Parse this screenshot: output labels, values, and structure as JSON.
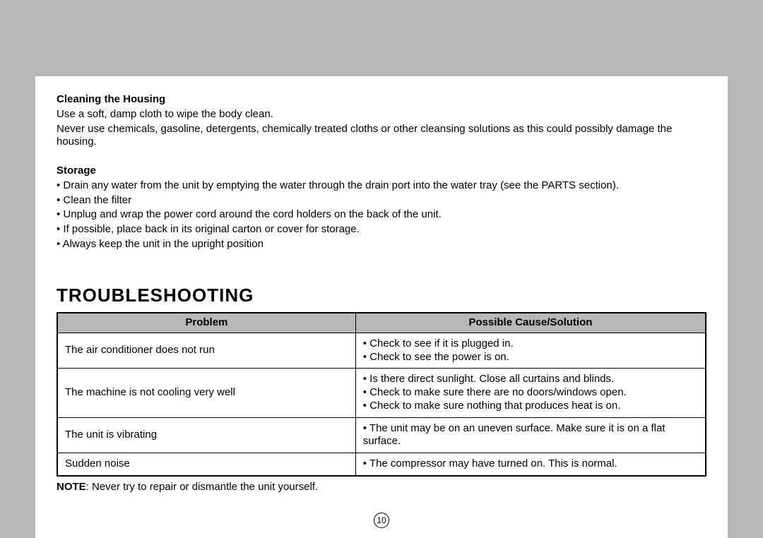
{
  "colors": {
    "page_bg": "#ffffff",
    "outer_bg": "#b8b8b8",
    "table_header_bg": "#b8b8b8",
    "text": "#000000",
    "border": "#000000"
  },
  "cleaning": {
    "heading": "Cleaning the Housing",
    "line1": "Use a soft, damp cloth to wipe the body clean.",
    "line2": "Never use chemicals, gasoline, detergents, chemically treated cloths or other cleansing solutions as this could possibly damage the housing."
  },
  "storage": {
    "heading": "Storage",
    "items": [
      "• Drain any water from the unit by emptying the water through the drain port into the water tray (see the PARTS section).",
      "• Clean the filter",
      "• Unplug and wrap the power cord around the cord holders on the back of the unit.",
      "• If possible, place back in its original carton or cover for storage.",
      "• Always keep the unit in the upright position"
    ]
  },
  "troubleshooting": {
    "title": "TROUBLESHOOTING",
    "columns": [
      "Problem",
      "Possible Cause/Solution"
    ],
    "rows": [
      {
        "problem": "The air conditioner does not run",
        "solution": "• Check to see if it is plugged in.\n• Check to see the power is on."
      },
      {
        "problem": "The machine is not cooling very well",
        "solution": "• Is there direct sunlight. Close all curtains and blinds.\n• Check to make sure there are no doors/windows open.\n• Check to make sure nothing that produces heat is on."
      },
      {
        "problem": "The unit is vibrating",
        "solution": "• The unit may be on an uneven surface. Make sure it is on a flat surface."
      },
      {
        "problem": "Sudden noise",
        "solution": "• The compressor may have turned on. This is normal."
      }
    ],
    "note_bold": "NOTE",
    "note_rest": ": Never try to repair or dismantle the unit yourself."
  },
  "page_number": "10"
}
